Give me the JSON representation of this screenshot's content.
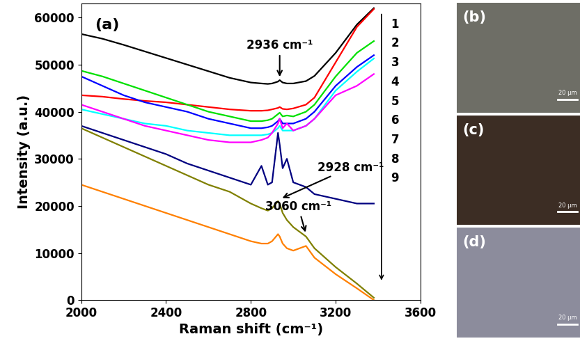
{
  "chart_data": {
    "type": "line",
    "title": "(a)",
    "x_label": "Raman shift (cm⁻¹)",
    "y_label": "Intensity (a.u.)",
    "x": [
      2000,
      2100,
      2200,
      2300,
      2400,
      2500,
      2600,
      2700,
      2800,
      2850,
      2880,
      2900,
      2928,
      2936,
      2950,
      2970,
      3000,
      3060,
      3100,
      3200,
      3300,
      3380
    ],
    "series": [
      {
        "name": "1",
        "color": "#000000",
        "values": [
          56500,
          55500,
          54200,
          52800,
          51400,
          50000,
          48600,
          47200,
          46200,
          46000,
          45900,
          46000,
          46400,
          46700,
          46200,
          46000,
          46000,
          46500,
          47600,
          52500,
          58500,
          62000
        ]
      },
      {
        "name": "2",
        "color": "#ff0000",
        "values": [
          43500,
          43200,
          42700,
          42300,
          42000,
          41500,
          41000,
          40500,
          40200,
          40200,
          40300,
          40500,
          40800,
          41000,
          40600,
          40500,
          40700,
          41500,
          43000,
          50500,
          58000,
          61800
        ]
      },
      {
        "name": "3",
        "color": "#00e000",
        "values": [
          48700,
          47500,
          46000,
          44500,
          43000,
          41500,
          40000,
          39000,
          38000,
          38000,
          38200,
          38500,
          39500,
          39800,
          39000,
          39200,
          39000,
          40000,
          41500,
          47500,
          52500,
          55000
        ]
      },
      {
        "name": "4",
        "color": "#0000ff",
        "values": [
          47500,
          45500,
          43500,
          42000,
          41000,
          40000,
          38500,
          37500,
          36500,
          36500,
          36700,
          37000,
          38000,
          38500,
          37500,
          37500,
          37500,
          38500,
          40000,
          45500,
          49500,
          52000
        ]
      },
      {
        "name": "5",
        "color": "#00ffff",
        "values": [
          40500,
          39500,
          38500,
          37500,
          37000,
          36000,
          35500,
          35000,
          35000,
          35000,
          35200,
          35500,
          36500,
          37000,
          36000,
          36000,
          36000,
          37000,
          38500,
          44500,
          48500,
          51300
        ]
      },
      {
        "name": "6",
        "color": "#ff00ff",
        "values": [
          41500,
          40000,
          38500,
          37000,
          36000,
          35000,
          34000,
          33500,
          33500,
          34000,
          34500,
          35500,
          37500,
          38500,
          36500,
          37500,
          36000,
          37000,
          38500,
          43500,
          45500,
          48000
        ]
      },
      {
        "name": "7",
        "color": "#000080",
        "values": [
          37000,
          35500,
          34000,
          32500,
          31000,
          29000,
          27500,
          26000,
          24500,
          28500,
          24500,
          25000,
          35500,
          33000,
          28000,
          30000,
          25000,
          24000,
          22500,
          21500,
          20500,
          20500
        ]
      },
      {
        "name": "8",
        "color": "#808000",
        "values": [
          36500,
          34500,
          32500,
          30500,
          28500,
          26500,
          24500,
          23000,
          20500,
          19500,
          19000,
          19500,
          21000,
          20500,
          18500,
          17000,
          15500,
          13500,
          11000,
          7000,
          3500,
          500
        ]
      },
      {
        "name": "9",
        "color": "#ff8000",
        "values": [
          24500,
          23000,
          21500,
          20000,
          18500,
          17000,
          15500,
          14000,
          12500,
          12000,
          12000,
          12500,
          14000,
          13500,
          12000,
          11000,
          10500,
          11500,
          9000,
          5500,
          2500,
          0
        ]
      }
    ],
    "annotations": [
      {
        "text": "2936 cm⁻¹",
        "x": 2936,
        "y": 47000
      },
      {
        "text": "2928 cm⁻¹",
        "x": 2940,
        "y": 21500
      },
      {
        "text": "3060 cm⁻¹",
        "x": 3060,
        "y": 14000
      }
    ],
    "xlim": [
      2000,
      3600
    ],
    "xticks": [
      2000,
      2400,
      2800,
      3200,
      3600
    ],
    "ylim": [
      0,
      63000
    ],
    "yticks": [
      0,
      10000,
      20000,
      30000,
      40000,
      50000,
      60000
    ],
    "grid": false
  },
  "images": [
    {
      "label": "(b)",
      "scale_bar": "20 μm",
      "color": "#6e6e66"
    },
    {
      "label": "(c)",
      "scale_bar": "20 μm",
      "color": "#3c2d24"
    },
    {
      "label": "(d)",
      "scale_bar": "20 μm",
      "color": "#8c8c9c"
    }
  ]
}
